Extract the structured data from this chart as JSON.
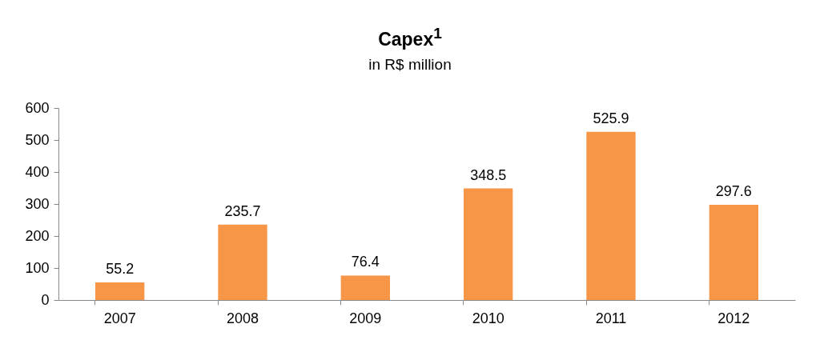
{
  "chart_data": {
    "type": "bar",
    "title": "Capex$^{1}$",
    "subtitle": "in R$ million",
    "categories": [
      "2007",
      "2008",
      "2009",
      "2010",
      "2011",
      "2012"
    ],
    "values": [
      55.2,
      235.7,
      76.4,
      348.5,
      525.9,
      297.6
    ],
    "color": "#f79646",
    "ylim": [
      0,
      600
    ],
    "yticks": [
      0,
      100,
      200,
      300,
      400,
      500,
      600
    ],
    "grid": false,
    "data_labels": true
  }
}
